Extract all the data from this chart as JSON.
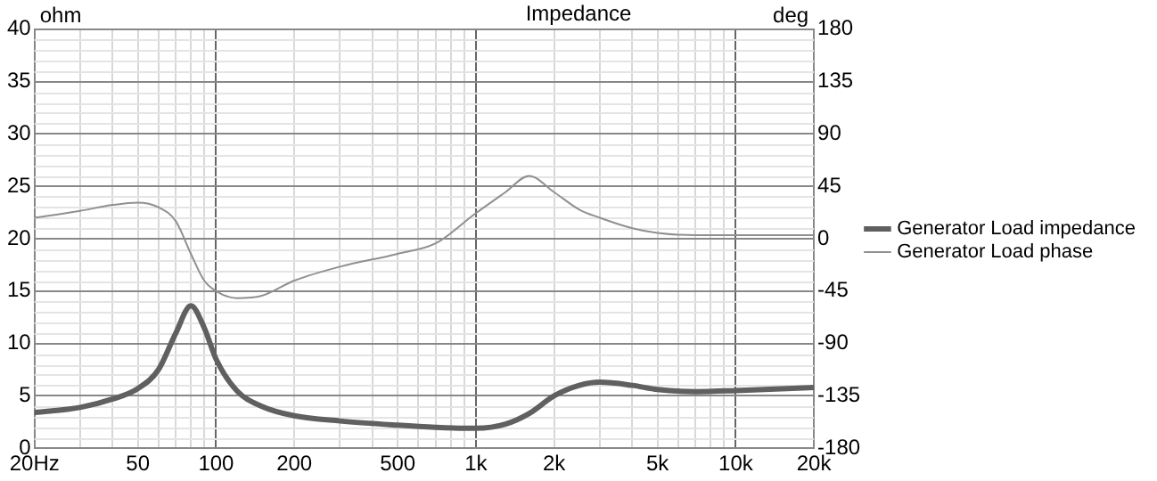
{
  "chart_data": {
    "type": "line",
    "title": "Impedance",
    "ylabel": "ohm",
    "y2label": "deg",
    "x": [
      20,
      30,
      40,
      50,
      60,
      70,
      80,
      90,
      100,
      120,
      150,
      200,
      300,
      500,
      700,
      1000,
      1300,
      1600,
      2000,
      2500,
      3000,
      4000,
      5000,
      7000,
      10000,
      20000
    ],
    "series": [
      {
        "name": "Generator Load impedance",
        "color": "#606060",
        "values": [
          3.4,
          3.9,
          4.7,
          5.7,
          7.5,
          11,
          13.6,
          11.5,
          8.5,
          5.5,
          4,
          3.1,
          2.6,
          2.2,
          2.0,
          1.9,
          2.3,
          3.3,
          5,
          6,
          6.3,
          6,
          5.6,
          5.4,
          5.5,
          5.8
        ]
      },
      {
        "name": "Generator Load phase",
        "color": "#909090",
        "axis": "y2",
        "values": [
          18,
          24,
          29,
          31,
          27,
          15,
          -13,
          -36,
          -45,
          -51,
          -49,
          -36,
          -24,
          -13,
          -4,
          22,
          40,
          54,
          40,
          25,
          18,
          9,
          5,
          3,
          3,
          3
        ]
      }
    ],
    "log": "x",
    "xlim": [
      20,
      20000
    ],
    "xticks": [
      {
        "value": 20,
        "label": "20Hz"
      },
      {
        "value": 30,
        "label": null
      },
      {
        "value": 40,
        "label": null
      },
      50,
      {
        "value": 60,
        "label": null
      },
      {
        "value": 70,
        "label": null
      },
      {
        "value": 80,
        "label": null
      },
      {
        "value": 90,
        "label": null
      },
      100,
      200,
      {
        "value": 300,
        "label": null
      },
      {
        "value": 400,
        "label": null
      },
      500,
      {
        "value": 600,
        "label": null
      },
      {
        "value": 700,
        "label": null
      },
      {
        "value": 800,
        "label": null
      },
      {
        "value": 900,
        "label": null
      },
      {
        "value": 1000,
        "label": "1k"
      },
      {
        "value": 2000,
        "label": "2k"
      },
      {
        "value": 3000,
        "label": null
      },
      {
        "value": 4000,
        "label": null
      },
      {
        "value": 5000,
        "label": "5k"
      },
      {
        "value": 6000,
        "label": null
      },
      {
        "value": 7000,
        "label": null
      },
      {
        "value": 8000,
        "label": null
      },
      {
        "value": 9000,
        "label": null
      },
      {
        "value": 10000,
        "label": "10k"
      },
      {
        "value": 20000,
        "label": "20k"
      }
    ],
    "ylim": [
      0,
      40
    ],
    "yticks": [
      0,
      5,
      10,
      15,
      20,
      25,
      30,
      35,
      40
    ],
    "y2lim": [
      -180,
      180
    ],
    "y2ticks": [
      -180,
      -135,
      -90,
      -45,
      0,
      45,
      90,
      135,
      180
    ],
    "grid": true,
    "legend": "right",
    "marker": "none",
    "line_style": "solid"
  }
}
